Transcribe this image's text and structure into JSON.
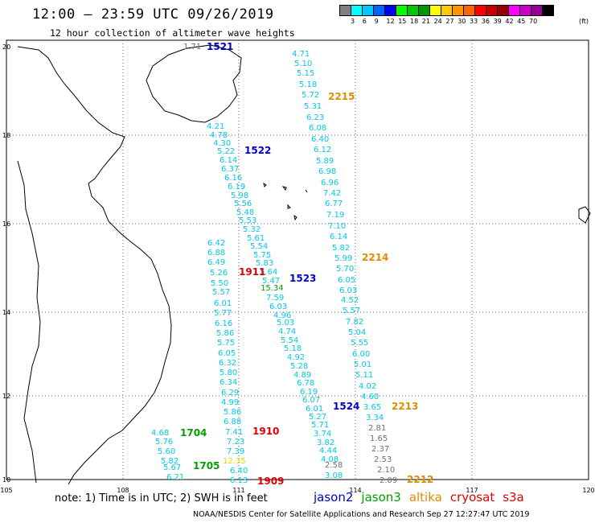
{
  "header": {
    "title": "12:00 – 23:59 UTC 09/26/2019",
    "subtitle": "12 hour collection of altimeter wave heights"
  },
  "legend": {
    "colors": [
      "#808080",
      "#00ffff",
      "#00c8ff",
      "#0064ff",
      "#0000ff",
      "#00ff00",
      "#00c800",
      "#009600",
      "#ffff00",
      "#ffc800",
      "#ff9600",
      "#ff6400",
      "#ff0000",
      "#c80000",
      "#960000",
      "#ff00ff",
      "#c800c8",
      "#960096",
      "#000000"
    ],
    "labels": [
      "3",
      "6",
      "9",
      "12",
      "15",
      "18",
      "21",
      "24",
      "27",
      "30",
      "33",
      "36",
      "39",
      "42",
      "45",
      "70"
    ],
    "unit": "(ft)"
  },
  "axes": {
    "lon_ticks": [
      "105",
      "108",
      "111",
      "114",
      "117",
      "120"
    ],
    "lat_ticks": [
      "20",
      "18",
      "16",
      "14",
      "12",
      "10"
    ]
  },
  "tracks": [
    {
      "id": "track_2215",
      "label": "2215",
      "color": "#e08c00",
      "labelPos": [
        408,
        124
      ],
      "values": [
        [
          "4.71",
          363,
          70
        ],
        [
          "5.10",
          366,
          82
        ],
        [
          "5.15",
          369,
          94
        ],
        [
          "5.18",
          372,
          108
        ],
        [
          "5.72",
          375,
          121
        ],
        [
          "5.31",
          378,
          135
        ],
        [
          "6.23",
          381,
          149
        ],
        [
          "6.08",
          384,
          162
        ],
        [
          "6.40",
          387,
          176
        ],
        [
          "6.12",
          390,
          189
        ],
        [
          "5.89",
          393,
          203
        ],
        [
          "6.98",
          396,
          216
        ],
        [
          "6.96",
          399,
          230
        ],
        [
          "7.42",
          402,
          243
        ],
        [
          "6.77",
          404,
          256
        ],
        [
          "7.19",
          406,
          270
        ],
        [
          "7.10",
          408,
          284
        ],
        [
          "6.14",
          410,
          297
        ],
        [
          "5.82",
          413,
          311
        ],
        [
          "5.99",
          416,
          324
        ]
      ]
    },
    {
      "id": "track_2214",
      "label": "2214",
      "color": "#e08c00",
      "labelPos": [
        450,
        324
      ],
      "values": [
        [
          "5.70",
          418,
          337
        ],
        [
          "6.05",
          420,
          351
        ],
        [
          "6.03",
          422,
          364
        ],
        [
          "4.52",
          424,
          376
        ],
        [
          "5.57",
          426,
          389
        ],
        [
          "7.82",
          430,
          403
        ],
        [
          "5.04",
          433,
          416
        ],
        [
          "5.55",
          436,
          429
        ],
        [
          "6.00",
          438,
          443
        ],
        [
          "5.01",
          440,
          456
        ],
        [
          "5.11",
          442,
          469
        ],
        [
          "4.02",
          446,
          483
        ],
        [
          "4.60",
          449,
          496
        ],
        [
          "3.65",
          452,
          509
        ],
        [
          "3.34",
          455,
          522
        ]
      ]
    },
    {
      "id": "track_2213",
      "label": "2213",
      "color": "#e08c00",
      "labelPos": [
        487,
        509
      ],
      "values": [
        [
          "2.81",
          458,
          535
        ],
        [
          "1.65",
          460,
          548
        ],
        [
          "2.37",
          462,
          561
        ],
        [
          "2.53",
          465,
          574
        ],
        [
          "2.10",
          469,
          587
        ],
        [
          "2.09",
          472,
          600
        ]
      ]
    },
    {
      "id": "track_2212",
      "label": "2212",
      "color": "#e08c00",
      "labelPos": [
        506,
        600
      ],
      "values": []
    },
    {
      "id": "track_1522",
      "label": "1522",
      "color": "#0000cc",
      "labelPos": [
        304,
        191
      ],
      "values": [
        [
          "4.21",
          257,
          160
        ],
        [
          "4.78",
          261,
          171
        ],
        [
          "4.30",
          265,
          181
        ],
        [
          "5.22",
          270,
          191
        ],
        [
          "6.14",
          273,
          202
        ],
        [
          "6.37",
          275,
          213
        ],
        [
          "6.16",
          279,
          224
        ],
        [
          "6.19",
          283,
          235
        ],
        [
          "5.98",
          287,
          246
        ],
        [
          "5.56",
          291,
          256
        ],
        [
          "5.48",
          294,
          267
        ],
        [
          "5.53",
          297,
          277
        ],
        [
          "5.32",
          302,
          288
        ],
        [
          "5.61",
          307,
          299
        ],
        [
          "5.54",
          311,
          309
        ],
        [
          "5.75",
          315,
          320
        ],
        [
          "5.83",
          318,
          330
        ],
        [
          "5.64",
          323,
          341
        ]
      ]
    },
    {
      "id": "track_1523",
      "label": "1523",
      "color": "#0000cc",
      "labelPos": [
        360,
        350
      ],
      "values": [
        [
          "5.47",
          326,
          352
        ],
        [
          "7.59",
          331,
          373
        ],
        [
          "6.03",
          335,
          384
        ],
        [
          "4.96",
          340,
          395
        ],
        [
          "5.03",
          344,
          404
        ],
        [
          "4.74",
          346,
          415
        ],
        [
          "5.54",
          349,
          426
        ],
        [
          "5.18",
          353,
          436
        ],
        [
          "4.92",
          357,
          447
        ],
        [
          "5.28",
          361,
          458
        ],
        [
          "4.89",
          365,
          469
        ],
        [
          "6.78",
          369,
          479
        ],
        [
          "6.19",
          373,
          490
        ],
        [
          "6.07",
          376,
          500
        ],
        [
          "6.01",
          380,
          511
        ],
        [
          "5.27",
          384,
          521
        ],
        [
          "5.71",
          387,
          531
        ],
        [
          "3.74",
          390,
          542
        ],
        [
          "3.82",
          394,
          553
        ],
        [
          "4.44",
          397,
          563
        ],
        [
          "4.08",
          399,
          574
        ],
        [
          "3.08",
          404,
          594
        ]
      ]
    },
    {
      "id": "track_1524",
      "label": "1524",
      "color": "#0000cc",
      "labelPos": [
        414,
        509
      ],
      "values": []
    },
    {
      "id": "track_1521",
      "label": "1521",
      "color": "#0000cc",
      "labelPos": [
        257,
        62
      ],
      "values": [
        [
          "1.71",
          228,
          61
        ]
      ]
    },
    {
      "id": "track_1911",
      "label": "1911",
      "color": "#e00000",
      "labelPos": [
        297,
        342
      ],
      "values": []
    },
    {
      "id": "track_1910",
      "label": "1910",
      "color": "#e00000",
      "labelPos": [
        314,
        540
      ],
      "values": []
    },
    {
      "id": "track_1909",
      "label": "1909",
      "color": "#e00000",
      "labelPos": [
        320,
        602
      ],
      "values": []
    },
    {
      "id": "track_1704",
      "label": "1704",
      "color": "#00a000",
      "labelPos": [
        224,
        542
      ],
      "values": []
    },
    {
      "id": "track_1705",
      "label": "1705",
      "color": "#00a000",
      "labelPos": [
        240,
        583
      ],
      "values": []
    },
    {
      "id": "track_jason3",
      "label": "",
      "color": "#00a000",
      "labelPos": [
        0,
        0
      ],
      "values": [
        [
          "15.34",
          324,
          361
        ]
      ]
    },
    {
      "id": "track_near111",
      "label": "",
      "color": "#00c8e8",
      "labelPos": [
        0,
        0
      ],
      "values": [
        [
          "6.42",
          258,
          305
        ],
        [
          "6.88",
          258,
          317
        ],
        [
          "6.49",
          258,
          329
        ],
        [
          "5.26",
          261,
          342
        ],
        [
          "5.50",
          262,
          355
        ],
        [
          "5.57",
          264,
          366
        ],
        [
          "6.01",
          266,
          380
        ],
        [
          "5.77",
          266,
          392
        ],
        [
          "6.16",
          267,
          405
        ],
        [
          "5.86",
          269,
          417
        ],
        [
          "5.75",
          270,
          429
        ],
        [
          "6.05",
          271,
          442
        ],
        [
          "6.32",
          272,
          454
        ],
        [
          "5.80",
          273,
          466
        ],
        [
          "6.34",
          273,
          478
        ],
        [
          "6.29",
          275,
          491
        ],
        [
          "4.99",
          275,
          503
        ],
        [
          "5.86",
          278,
          515
        ],
        [
          "6.88",
          278,
          527
        ],
        [
          "7.41",
          280,
          540
        ],
        [
          "7.23",
          282,
          552
        ],
        [
          "7.39",
          282,
          564
        ],
        [
          "6.40",
          286,
          588
        ],
        [
          "6.13",
          286,
          600
        ]
      ]
    },
    {
      "id": "track_yellow",
      "label": "",
      "color": "#e8e800",
      "values": [
        [
          "12.35",
          277,
          576
        ]
      ],
      "labelPos": [
        0,
        0
      ]
    },
    {
      "id": "track_coast",
      "label": "",
      "color": "#00c8e8",
      "labelPos": [
        0,
        0
      ],
      "values": [
        [
          "4.68",
          188,
          541
        ],
        [
          "5.76",
          193,
          552
        ],
        [
          "5.60",
          196,
          564
        ],
        [
          "5.82",
          200,
          576
        ],
        [
          "5.67",
          203,
          584
        ],
        [
          "6.21",
          207,
          596
        ]
      ]
    },
    {
      "id": "track_grey",
      "label": "",
      "color": "#808080",
      "labelPos": [
        0,
        0
      ],
      "values": [
        [
          "2.58",
          404,
          581
        ]
      ]
    }
  ],
  "notes": {
    "note_text": "note: 1) Time is in UTC; 2) SWH is in feet",
    "satellites": [
      {
        "name": "jason2",
        "color": "#0000cc"
      },
      {
        "name": "jason3",
        "color": "#00a000"
      },
      {
        "name": "altika",
        "color": "#e08c00"
      },
      {
        "name": "cryosat",
        "color": "#e00000"
      },
      {
        "name": "s3a",
        "color": "#e00000"
      }
    ],
    "credit": "NOAA/NESDIS Center for Satellite Applications and Research   Sep 27 12:27:47 UTC 2019"
  }
}
